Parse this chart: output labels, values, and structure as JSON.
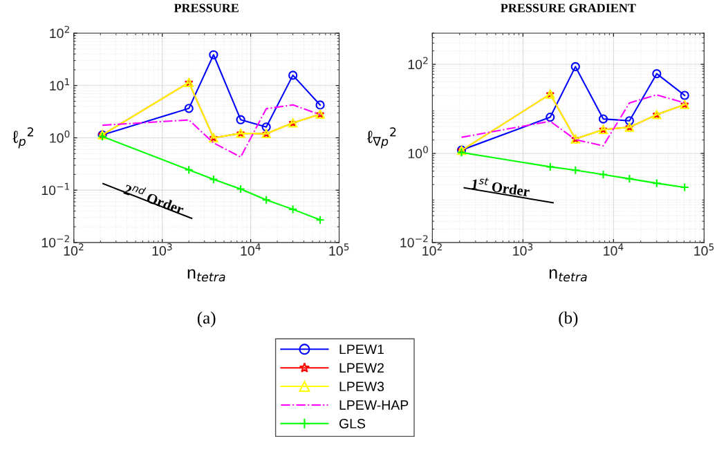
{
  "chart_data": [
    {
      "type": "line",
      "title": "PRESSURE",
      "xlabel": "n$_{tetra}$",
      "ylabel": "ℓ$_{p}$$^{2}$",
      "log": "xy",
      "grid": true,
      "legend": "bottom",
      "x": [
        210,
        2000,
        3800,
        7700,
        15000,
        30000,
        61000
      ],
      "xlim": [
        100,
        100000
      ],
      "xticks": [
        {
          "value": 100,
          "label": "10$^{2}$"
        },
        {
          "value": 1000,
          "label": "10$^{3}$"
        },
        {
          "value": 10000,
          "label": "10$^{4}$"
        },
        {
          "value": 100000,
          "label": "10$^{5}$"
        }
      ],
      "ylim": [
        0.01,
        100
      ],
      "yticks": [
        {
          "value": 0.01,
          "label": "10$^{−2}$"
        },
        {
          "value": 0.1,
          "label": "10$^{−1}$"
        },
        {
          "value": 1,
          "label": "10$^{0}$"
        },
        {
          "value": 10,
          "label": "10$^{1}$"
        },
        {
          "value": 100,
          "label": "10$^{2}$"
        }
      ],
      "series": [
        {
          "name": "LPEW1",
          "color": "#0000ff",
          "marker": "circle",
          "line_style": "solid",
          "values": [
            1.14,
            3.65,
            38.7,
            2.22,
            1.61,
            15.7,
            4.24
          ]
        },
        {
          "name": "LPEW2",
          "color": "#ff0000",
          "marker": "star",
          "line_style": "solid",
          "values": [
            1.14,
            11.4,
            1.0,
            1.22,
            1.2,
            1.93,
            2.83
          ]
        },
        {
          "name": "LPEW3",
          "color": "#ffff00",
          "marker": "triangle",
          "line_style": "solid",
          "values": [
            1.14,
            11.4,
            1.0,
            1.22,
            1.2,
            1.93,
            2.83
          ]
        },
        {
          "name": "LPEW-HAP",
          "color": "#ff00ff",
          "marker": "none",
          "line_style": "dashdot",
          "values": [
            1.74,
            2.2,
            0.8,
            0.43,
            3.6,
            4.26,
            2.77
          ]
        },
        {
          "name": "GLS",
          "color": "#00ff00",
          "marker": "cross",
          "line_style": "solid",
          "values": [
            1.06,
            0.244,
            0.161,
            0.105,
            0.065,
            0.043,
            0.027
          ]
        },
        {
          "color": "#000000",
          "marker": "none",
          "line_style": "solid",
          "x": [
            214,
            2150
          ],
          "values": [
            0.133,
            0.029
          ]
        }
      ],
      "annotations": [
        "2$^{nd}$ Order",
        "(a)"
      ]
    },
    {
      "type": "line",
      "title": "PRESSURE GRADIENT",
      "xlabel": "n$_{tetra}$",
      "ylabel": "ℓ$_{∇p}$$^{2}$",
      "log": "xy",
      "grid": true,
      "x": [
        210,
        2000,
        3800,
        7700,
        15000,
        30000,
        61000
      ],
      "xlim": [
        100,
        100000
      ],
      "xticks": [
        {
          "value": 100,
          "label": "10$^{2}$"
        },
        {
          "value": 1000,
          "label": "10$^{3}$"
        },
        {
          "value": 10000,
          "label": "10$^{4}$"
        },
        {
          "value": 100000,
          "label": "10$^{5}$"
        }
      ],
      "ylim": [
        0.01,
        500
      ],
      "yticks": [
        {
          "value": 0.01,
          "label": "10$^{−2}$"
        },
        {
          "value": 1,
          "label": "10$^{0}$"
        },
        {
          "value": 100,
          "label": "10$^{2}$"
        }
      ],
      "series": [
        {
          "name": "LPEW1",
          "color": "#0000ff",
          "marker": "circle",
          "line_style": "solid",
          "values": [
            1.19,
            6.5,
            88.8,
            5.94,
            5.4,
            61.5,
            20.1
          ]
        },
        {
          "name": "LPEW2",
          "color": "#ff0000",
          "marker": "star",
          "line_style": "solid",
          "values": [
            1.17,
            21.4,
            2.11,
            3.43,
            3.87,
            7.43,
            12.5
          ]
        },
        {
          "name": "LPEW3",
          "color": "#ffff00",
          "marker": "triangle",
          "line_style": "solid",
          "values": [
            1.17,
            21.4,
            2.11,
            3.43,
            3.87,
            7.43,
            12.5
          ]
        },
        {
          "name": "LPEW-HAP",
          "color": "#ff00ff",
          "marker": "none",
          "line_style": "dashdot",
          "values": [
            2.3,
            5.27,
            2.04,
            1.48,
            13.6,
            20.6,
            13.6
          ]
        },
        {
          "name": "GLS",
          "color": "#00ff00",
          "marker": "cross",
          "line_style": "solid",
          "values": [
            1.05,
            0.5,
            0.42,
            0.335,
            0.27,
            0.214,
            0.173
          ]
        },
        {
          "color": "#000000",
          "marker": "none",
          "line_style": "solid",
          "x": [
            225,
            2150
          ],
          "values": [
            0.169,
            0.078
          ]
        }
      ],
      "annotations": [
        "1$^{st}$ Order",
        "(b)"
      ]
    }
  ]
}
